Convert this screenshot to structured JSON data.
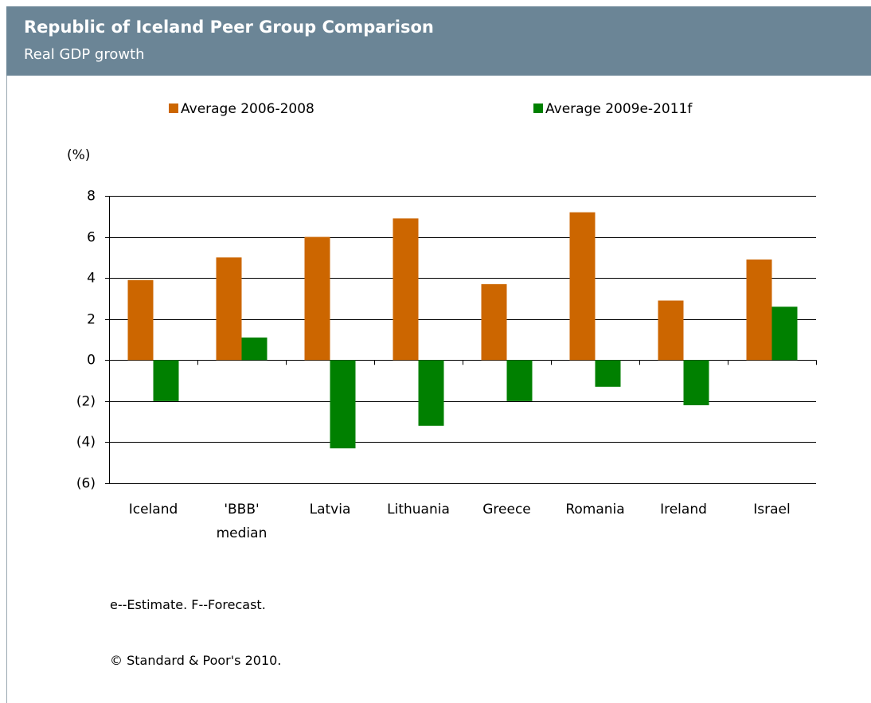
{
  "chart_data": {
    "type": "bar",
    "title": "Republic of Iceland Peer Group Comparison",
    "subtitle": "Real GDP growth",
    "ylabel": "(%)",
    "categories": [
      "Iceland",
      "'BBB' median",
      "Latvia",
      "Lithuania",
      "Greece",
      "Romania",
      "Ireland",
      "Israel"
    ],
    "series": [
      {
        "name": "Average 2006-2008",
        "color": "#cc6600",
        "values": [
          3.9,
          5.0,
          6.0,
          6.9,
          3.7,
          7.2,
          2.9,
          4.9
        ]
      },
      {
        "name": "Average 2009e-2011f",
        "color": "#008000",
        "values": [
          -2.0,
          1.1,
          -4.3,
          -3.2,
          -2.0,
          -1.3,
          -2.2,
          2.6
        ]
      }
    ],
    "ylim": [
      -6,
      8
    ],
    "yticks": [
      8,
      6,
      4,
      2,
      0,
      {
        "value": -2,
        "label": "(2)"
      },
      {
        "value": -4,
        "label": "(4)"
      },
      {
        "value": -6,
        "label": "(6)"
      }
    ],
    "grid": true,
    "legend": "top",
    "notes": [
      "e--Estimate. F--Forecast.",
      "© Standard & Poor's 2010."
    ]
  }
}
